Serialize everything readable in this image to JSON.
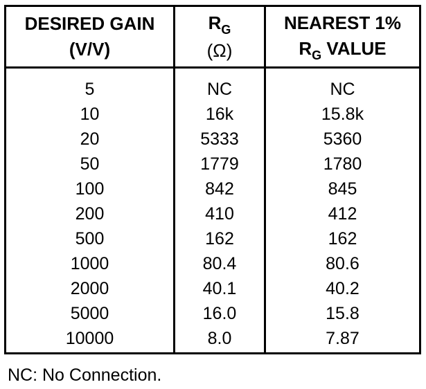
{
  "table": {
    "headers": {
      "col1": {
        "line1": "DESIRED GAIN",
        "line2": "(V/V)"
      },
      "col2": {
        "main": "R",
        "sub": "G",
        "unit": "(Ω)"
      },
      "col3": {
        "line1": "NEAREST 1%",
        "main": "R",
        "sub": "G",
        "rest": " VALUE"
      }
    },
    "rows": [
      [
        "5",
        "NC",
        "NC"
      ],
      [
        "10",
        "16k",
        "15.8k"
      ],
      [
        "20",
        "5333",
        "5360"
      ],
      [
        "50",
        "1779",
        "1780"
      ],
      [
        "100",
        "842",
        "845"
      ],
      [
        "200",
        "410",
        "412"
      ],
      [
        "500",
        "162",
        "162"
      ],
      [
        "1000",
        "80.4",
        "80.6"
      ],
      [
        "2000",
        "40.1",
        "40.2"
      ],
      [
        "5000",
        "16.0",
        "15.8"
      ],
      [
        "10000",
        "8.0",
        "7.87"
      ]
    ]
  },
  "footnote": "NC: No Connection."
}
